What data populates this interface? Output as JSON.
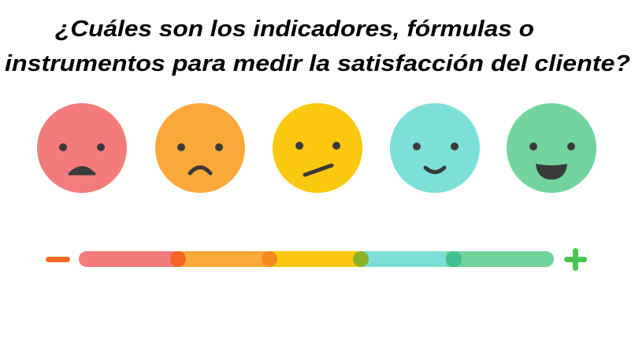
{
  "header": {
    "title_lines": [
      "¿Cuáles son los indicadores, fórmulas o",
      "instrumentos para medir la satisfacción del cliente?"
    ]
  }
}
